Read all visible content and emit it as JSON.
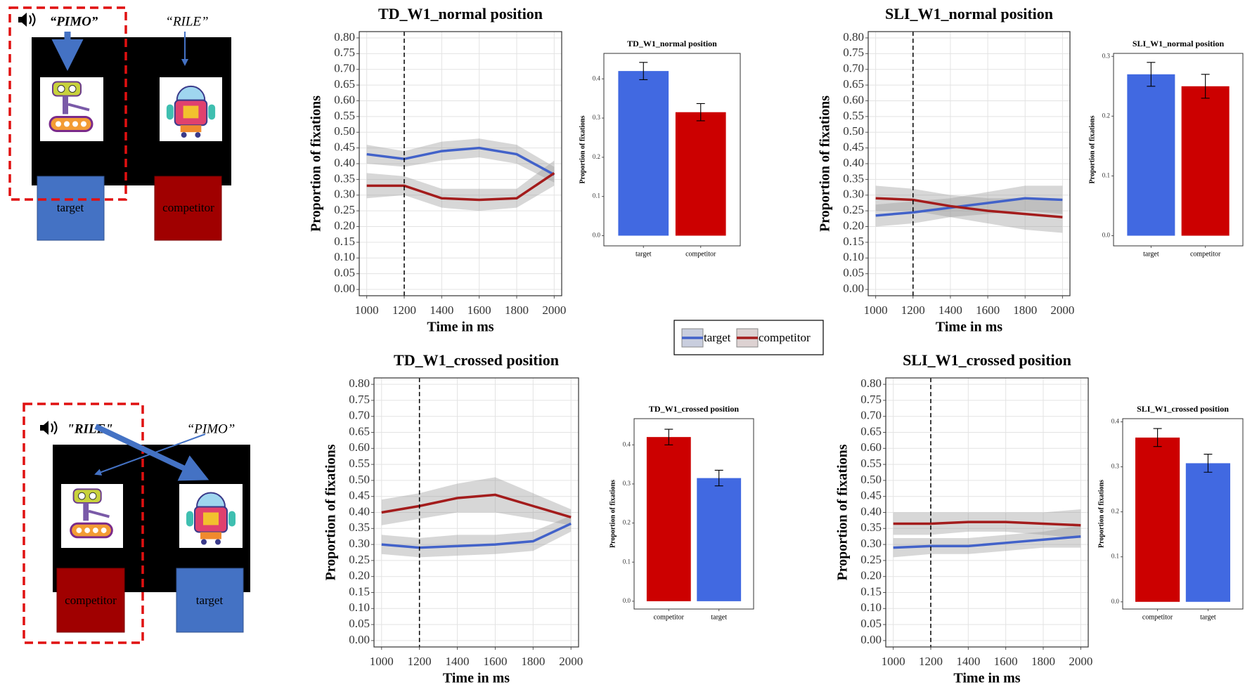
{
  "panels": [
    {
      "cue": "“PIMO”",
      "other": "“RILE”",
      "boxes": [
        "target",
        "competitor"
      ]
    },
    {
      "cue": "\"RILE\"",
      "other": "“PIMO”",
      "boxes": [
        "competitor",
        "target"
      ]
    }
  ],
  "chart_data": [
    {
      "type": "line",
      "title": "TD_W1_normal position",
      "x_label": "Time in ms",
      "y_label": "Proportion of fixations",
      "x": [
        1000,
        1200,
        1400,
        1600,
        1800,
        2000
      ],
      "series": [
        {
          "name": "target",
          "color": "#4262c9",
          "values": [
            0.43,
            0.415,
            0.44,
            0.45,
            0.43,
            0.365
          ],
          "lower": [
            0.4,
            0.39,
            0.41,
            0.42,
            0.4,
            0.34
          ],
          "upper": [
            0.46,
            0.44,
            0.47,
            0.48,
            0.46,
            0.39
          ]
        },
        {
          "name": "competitor",
          "color": "#a31c1c",
          "values": [
            0.33,
            0.33,
            0.29,
            0.285,
            0.29,
            0.37
          ],
          "lower": [
            0.29,
            0.3,
            0.26,
            0.25,
            0.26,
            0.33
          ],
          "upper": [
            0.37,
            0.36,
            0.32,
            0.32,
            0.32,
            0.41
          ]
        }
      ],
      "vline": 1200,
      "xlim": [
        960,
        2040
      ],
      "ylim": [
        -0.02,
        0.82
      ],
      "xticks": [
        1000,
        1200,
        1400,
        1600,
        1800,
        2000
      ],
      "yticks": [
        {
          "value": 0,
          "label": "0.00"
        },
        0.05,
        {
          "value": 0.1,
          "label": "0.10"
        },
        0.15,
        {
          "value": 0.2,
          "label": "0.20"
        },
        0.25,
        {
          "value": 0.3,
          "label": "0.30"
        },
        0.35,
        {
          "value": 0.4,
          "label": "0.40"
        },
        0.45,
        {
          "value": 0.5,
          "label": "0.50"
        },
        0.55,
        {
          "value": 0.6,
          "label": "0.60"
        },
        0.65,
        {
          "value": 0.7,
          "label": "0.70"
        },
        0.75,
        {
          "value": 0.8,
          "label": "0.80"
        }
      ],
      "grid": true
    },
    {
      "type": "bar",
      "title": "TD_W1_normal position",
      "y_label": "Proportion of fixations",
      "categories": [
        "target",
        "competitor"
      ],
      "values": [
        0.42,
        0.315
      ],
      "errors": [
        0.022,
        0.022
      ],
      "colors": [
        "#4169e1",
        "#cc0000"
      ],
      "ylim": [
        -0.026,
        0.465
      ],
      "yticks": [
        {
          "value": 0,
          "label": "0.0"
        },
        0.1,
        0.2,
        0.3,
        0.4
      ]
    },
    {
      "type": "line",
      "title": "SLI_W1_normal position",
      "x_label": "Time in ms",
      "y_label": "Proportion of fixations",
      "x": [
        1000,
        1200,
        1400,
        1600,
        1800,
        2000
      ],
      "series": [
        {
          "name": "target",
          "color": "#4262c9",
          "values": [
            0.235,
            0.245,
            0.26,
            0.275,
            0.29,
            0.285
          ],
          "lower": [
            0.2,
            0.21,
            0.23,
            0.24,
            0.25,
            0.24
          ],
          "upper": [
            0.27,
            0.28,
            0.29,
            0.31,
            0.33,
            0.33
          ]
        },
        {
          "name": "competitor",
          "color": "#a31c1c",
          "values": [
            0.29,
            0.285,
            0.265,
            0.25,
            0.24,
            0.23
          ],
          "lower": [
            0.25,
            0.25,
            0.23,
            0.21,
            0.19,
            0.18
          ],
          "upper": [
            0.33,
            0.32,
            0.3,
            0.29,
            0.29,
            0.28
          ]
        }
      ],
      "vline": 1200,
      "xlim": [
        960,
        2040
      ],
      "ylim": [
        -0.02,
        0.82
      ],
      "xticks": [
        1000,
        1200,
        1400,
        1600,
        1800,
        2000
      ],
      "yticks": [
        {
          "value": 0,
          "label": "0.00"
        },
        0.05,
        {
          "value": 0.1,
          "label": "0.10"
        },
        0.15,
        {
          "value": 0.2,
          "label": "0.20"
        },
        0.25,
        {
          "value": 0.3,
          "label": "0.30"
        },
        0.35,
        {
          "value": 0.4,
          "label": "0.40"
        },
        0.45,
        {
          "value": 0.5,
          "label": "0.50"
        },
        0.55,
        {
          "value": 0.6,
          "label": "0.60"
        },
        0.65,
        {
          "value": 0.7,
          "label": "0.70"
        },
        0.75,
        {
          "value": 0.8,
          "label": "0.80"
        }
      ],
      "grid": true
    },
    {
      "type": "bar",
      "title": "SLI_W1_normal position",
      "y_label": "Proportion of fixations",
      "categories": [
        "target",
        "competitor"
      ],
      "values": [
        0.27,
        0.25
      ],
      "errors": [
        0.02,
        0.02
      ],
      "colors": [
        "#4169e1",
        "#cc0000"
      ],
      "ylim": [
        -0.017,
        0.305
      ],
      "yticks": [
        {
          "value": 0,
          "label": "0.0"
        },
        0.1,
        0.2,
        0.3
      ]
    },
    {
      "type": "line",
      "title": "TD_W1_crossed position",
      "x_label": "Time in ms",
      "y_label": "Proportion of fixations",
      "x": [
        1000,
        1200,
        1400,
        1600,
        1800,
        2000
      ],
      "series": [
        {
          "name": "target",
          "color": "#4262c9",
          "values": [
            0.3,
            0.29,
            0.295,
            0.3,
            0.31,
            0.365
          ],
          "lower": [
            0.27,
            0.26,
            0.265,
            0.27,
            0.28,
            0.34
          ],
          "upper": [
            0.33,
            0.32,
            0.33,
            0.33,
            0.34,
            0.39
          ]
        },
        {
          "name": "competitor",
          "color": "#a31c1c",
          "values": [
            0.4,
            0.42,
            0.445,
            0.455,
            0.42,
            0.385
          ],
          "lower": [
            0.36,
            0.38,
            0.4,
            0.4,
            0.38,
            0.36
          ],
          "upper": [
            0.44,
            0.46,
            0.49,
            0.51,
            0.46,
            0.41
          ]
        }
      ],
      "vline": 1200,
      "xlim": [
        960,
        2040
      ],
      "ylim": [
        -0.02,
        0.82
      ],
      "xticks": [
        1000,
        1200,
        1400,
        1600,
        1800,
        2000
      ],
      "yticks": [
        {
          "value": 0,
          "label": "0.00"
        },
        0.05,
        {
          "value": 0.1,
          "label": "0.10"
        },
        0.15,
        {
          "value": 0.2,
          "label": "0.20"
        },
        0.25,
        {
          "value": 0.3,
          "label": "0.30"
        },
        0.35,
        {
          "value": 0.4,
          "label": "0.40"
        },
        0.45,
        {
          "value": 0.5,
          "label": "0.50"
        },
        0.55,
        {
          "value": 0.6,
          "label": "0.60"
        },
        0.65,
        {
          "value": 0.7,
          "label": "0.70"
        },
        0.75,
        {
          "value": 0.8,
          "label": "0.80"
        }
      ],
      "grid": true
    },
    {
      "type": "bar",
      "title": "TD_W1_crossed position",
      "y_label": "Proportion of fixations",
      "categories": [
        "competitor",
        "target"
      ],
      "values": [
        0.42,
        0.315
      ],
      "errors": [
        0.02,
        0.02
      ],
      "colors": [
        "#cc0000",
        "#4169e1"
      ],
      "ylim": [
        -0.02,
        0.467
      ],
      "yticks": [
        {
          "value": 0,
          "label": "0.0"
        },
        0.1,
        0.2,
        0.3,
        0.4
      ]
    },
    {
      "type": "line",
      "title": "SLI_W1_crossed position",
      "x_label": "Time in ms",
      "y_label": "Proportion of fixations",
      "x": [
        1000,
        1200,
        1400,
        1600,
        1800,
        2000
      ],
      "series": [
        {
          "name": "target",
          "color": "#4262c9",
          "values": [
            0.29,
            0.295,
            0.295,
            0.305,
            0.315,
            0.325
          ],
          "lower": [
            0.26,
            0.27,
            0.27,
            0.28,
            0.29,
            0.29
          ],
          "upper": [
            0.32,
            0.32,
            0.32,
            0.33,
            0.34,
            0.36
          ]
        },
        {
          "name": "competitor",
          "color": "#a31c1c",
          "values": [
            0.365,
            0.365,
            0.37,
            0.37,
            0.365,
            0.36
          ],
          "lower": [
            0.33,
            0.33,
            0.34,
            0.34,
            0.33,
            0.32
          ],
          "upper": [
            0.4,
            0.4,
            0.4,
            0.4,
            0.4,
            0.41
          ]
        }
      ],
      "vline": 1200,
      "xlim": [
        960,
        2040
      ],
      "ylim": [
        -0.02,
        0.82
      ],
      "xticks": [
        1000,
        1200,
        1400,
        1600,
        1800,
        2000
      ],
      "yticks": [
        {
          "value": 0,
          "label": "0.00"
        },
        0.05,
        {
          "value": 0.1,
          "label": "0.10"
        },
        0.15,
        {
          "value": 0.2,
          "label": "0.20"
        },
        0.25,
        {
          "value": 0.3,
          "label": "0.30"
        },
        0.35,
        {
          "value": 0.4,
          "label": "0.40"
        },
        0.45,
        {
          "value": 0.5,
          "label": "0.50"
        },
        0.55,
        {
          "value": 0.6,
          "label": "0.60"
        },
        0.65,
        {
          "value": 0.7,
          "label": "0.70"
        },
        0.75,
        {
          "value": 0.8,
          "label": "0.80"
        }
      ],
      "grid": true
    },
    {
      "type": "bar",
      "title": "SLI_W1_crossed position",
      "y_label": "Proportion of fixations",
      "categories": [
        "competitor",
        "target"
      ],
      "values": [
        0.365,
        0.308
      ],
      "errors": [
        0.02,
        0.02
      ],
      "colors": [
        "#cc0000",
        "#4169e1"
      ],
      "ylim": [
        -0.016,
        0.407
      ],
      "yticks": [
        {
          "value": 0,
          "label": "0.0"
        },
        0.1,
        0.2,
        0.3,
        0.4
      ]
    }
  ]
}
